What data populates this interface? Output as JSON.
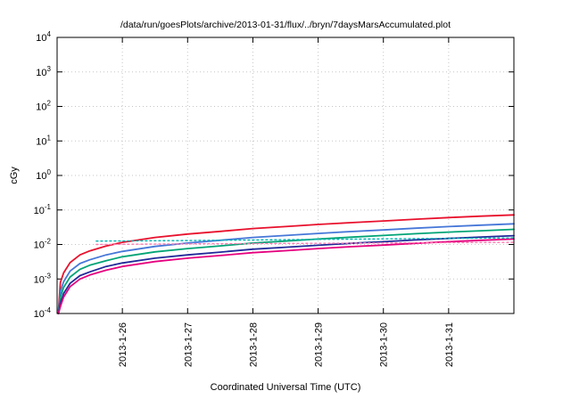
{
  "chart_data": {
    "type": "line",
    "title": "/data/run/goesPlots/archive/2013-01-31/flux/../bryn/7daysMarsAccumulated.plot",
    "xlabel": "Coordinated Universal Time (UTC)",
    "ylabel": "cGy",
    "ylim": [
      0.0001,
      10000
    ],
    "y_scale": "log",
    "y_tick_base": "10",
    "y_ticks_exponents": [
      4,
      3,
      2,
      1,
      0,
      -1,
      -2,
      -3,
      -4
    ],
    "xrange": [
      0,
      7
    ],
    "x_ticks": [
      {
        "t": 1,
        "label": "2013-1-26"
      },
      {
        "t": 2,
        "label": "2013-1-27"
      },
      {
        "t": 3,
        "label": "2013-1-28"
      },
      {
        "t": 4,
        "label": "2013-1-29"
      },
      {
        "t": 5,
        "label": "2013-1-30"
      },
      {
        "t": 6,
        "label": "2013-1-31"
      }
    ],
    "grid": true,
    "legend": "none",
    "x": [
      0.02,
      0.05,
      0.1,
      0.2,
      0.35,
      0.5,
      0.75,
      1.0,
      1.5,
      2.0,
      2.5,
      3.0,
      3.5,
      4.0,
      4.5,
      5.0,
      5.5,
      6.0,
      6.5,
      7.0
    ],
    "series": [
      {
        "name": "red",
        "style": "solid",
        "color": "#e8112d",
        "values": [
          0.00012,
          0.0008,
          0.0015,
          0.003,
          0.005,
          0.0065,
          0.009,
          0.0115,
          0.016,
          0.02,
          0.024,
          0.029,
          0.033,
          0.038,
          0.043,
          0.048,
          0.054,
          0.06,
          0.066,
          0.072
        ]
      },
      {
        "name": "skyblue",
        "style": "solid",
        "color": "#4677d8",
        "values": [
          0.0001,
          0.00044,
          0.00083,
          0.0017,
          0.0028,
          0.0036,
          0.005,
          0.0063,
          0.0088,
          0.011,
          0.0132,
          0.016,
          0.0182,
          0.0209,
          0.0237,
          0.0264,
          0.0297,
          0.033,
          0.0363,
          0.0396
        ]
      },
      {
        "name": "green",
        "style": "solid",
        "color": "#00a476",
        "values": [
          0.0001,
          0.0003,
          0.00057,
          0.00114,
          0.0019,
          0.0025,
          0.0034,
          0.0044,
          0.0061,
          0.0076,
          0.0091,
          0.011,
          0.0125,
          0.0144,
          0.0163,
          0.0182,
          0.0205,
          0.0228,
          0.025,
          0.0274
        ]
      },
      {
        "name": "navy",
        "style": "solid",
        "color": "#222a9a",
        "values": [
          0.0001,
          0.0002,
          0.00038,
          0.00075,
          0.00125,
          0.0016,
          0.0023,
          0.0029,
          0.004,
          0.005,
          0.006,
          0.0073,
          0.0083,
          0.0095,
          0.0108,
          0.012,
          0.0135,
          0.015,
          0.0165,
          0.018
        ]
      },
      {
        "name": "magenta",
        "style": "solid",
        "color": "#e6007e",
        "values": [
          0.0001,
          0.00016,
          0.0003,
          0.0006,
          0.001,
          0.0013,
          0.0018,
          0.0023,
          0.0032,
          0.004,
          0.0048,
          0.0058,
          0.0066,
          0.0076,
          0.0086,
          0.0096,
          0.0108,
          0.012,
          0.0132,
          0.0144
        ]
      },
      {
        "name": "cyan-dotted",
        "style": "dotted",
        "color": "#00b2b2",
        "x": [
          0.6,
          2.0,
          4.0,
          7.0
        ],
        "values": [
          0.0125,
          0.013,
          0.014,
          0.0155
        ]
      },
      {
        "name": "pink-dotted",
        "style": "dotted",
        "color": "#ff7bb2",
        "x": [
          0.6,
          2.0,
          4.0,
          7.0
        ],
        "values": [
          0.01,
          0.0104,
          0.0108,
          0.0115
        ]
      }
    ]
  }
}
